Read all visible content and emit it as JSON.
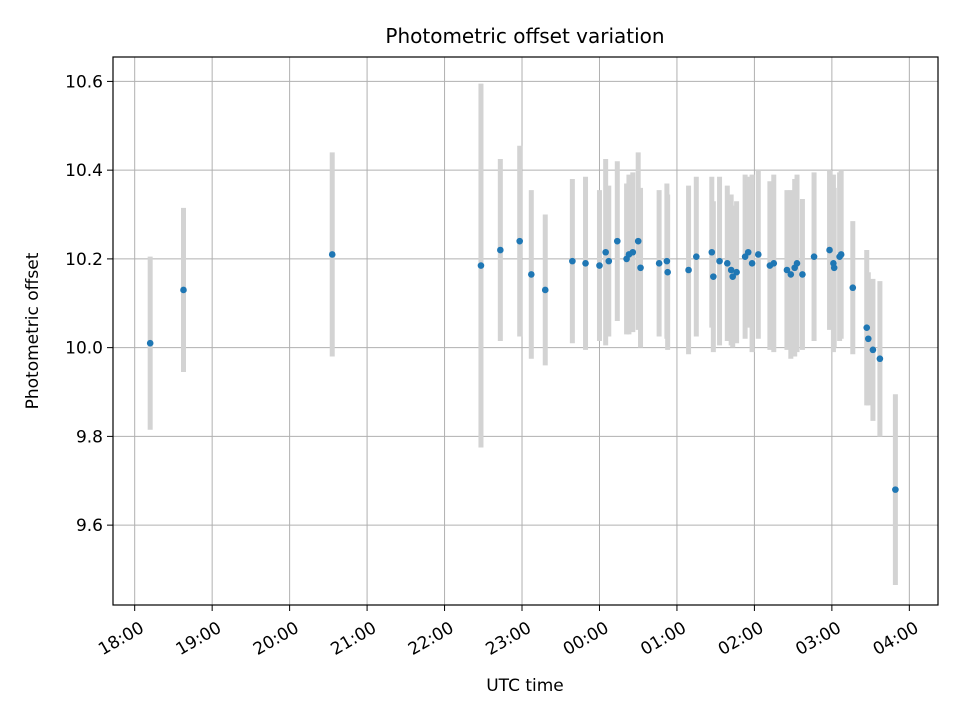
{
  "chart_data": {
    "type": "scatter",
    "title": "Photometric offset variation",
    "xlabel": "UTC time",
    "ylabel": "Photometric offset",
    "x_ticks": [
      "18:00",
      "19:00",
      "20:00",
      "21:00",
      "22:00",
      "23:00",
      "00:00",
      "01:00",
      "02:00",
      "03:00",
      "04:00"
    ],
    "x_tick_hours": [
      0,
      1,
      2,
      3,
      4,
      5,
      6,
      7,
      8,
      9,
      10
    ],
    "x_axis_start": "18:00",
    "xlim_hours": [
      -0.28,
      10.37
    ],
    "y_ticks": [
      "9.6",
      "9.8",
      "10.0",
      "10.2",
      "10.4",
      "10.6"
    ],
    "y_tick_values": [
      9.6,
      9.8,
      10.0,
      10.2,
      10.4,
      10.6
    ],
    "ylim": [
      9.42,
      10.655
    ],
    "grid": true,
    "point_color": "#1f77b4",
    "errorbar_color": "#d3d3d3",
    "series": [
      {
        "x_hours": [
          0.2,
          0.63,
          2.55,
          4.47,
          4.72,
          4.97,
          5.12,
          5.3,
          5.65,
          5.82,
          6.0,
          6.08,
          6.12,
          6.23,
          6.35,
          6.38,
          6.43,
          6.5,
          6.53,
          6.77,
          6.87,
          6.88,
          7.15,
          7.25,
          7.45,
          7.47,
          7.55,
          7.65,
          7.7,
          7.72,
          7.77,
          7.88,
          7.92,
          7.97,
          8.05,
          8.2,
          8.25,
          8.42,
          8.47,
          8.52,
          8.55,
          8.62,
          8.77,
          8.97,
          9.02,
          9.03,
          9.1,
          9.12,
          9.27,
          9.45,
          9.47,
          9.53,
          9.62,
          9.82
        ],
        "y": [
          10.01,
          10.13,
          10.21,
          10.185,
          10.22,
          10.24,
          10.165,
          10.13,
          10.195,
          10.19,
          10.185,
          10.215,
          10.195,
          10.24,
          10.2,
          10.21,
          10.215,
          10.24,
          10.18,
          10.19,
          10.195,
          10.17,
          10.175,
          10.205,
          10.215,
          10.16,
          10.195,
          10.19,
          10.175,
          10.16,
          10.17,
          10.205,
          10.215,
          10.19,
          10.21,
          10.185,
          10.19,
          10.175,
          10.165,
          10.18,
          10.19,
          10.165,
          10.205,
          10.22,
          10.19,
          10.18,
          10.205,
          10.21,
          10.135,
          10.045,
          10.02,
          9.995,
          9.975,
          9.68
        ],
        "yerr": [
          0.195,
          0.185,
          0.23,
          0.41,
          0.205,
          0.215,
          0.19,
          0.17,
          0.185,
          0.195,
          0.17,
          0.21,
          0.17,
          0.18,
          0.17,
          0.18,
          0.18,
          0.2,
          0.18,
          0.165,
          0.175,
          0.175,
          0.19,
          0.18,
          0.17,
          0.17,
          0.19,
          0.175,
          0.17,
          0.16,
          0.16,
          0.185,
          0.17,
          0.2,
          0.19,
          0.19,
          0.2,
          0.18,
          0.19,
          0.2,
          0.2,
          0.17,
          0.19,
          0.18,
          0.2,
          0.18,
          0.19,
          0.19,
          0.15,
          0.175,
          0.15,
          0.16,
          0.175,
          0.215
        ]
      }
    ]
  }
}
